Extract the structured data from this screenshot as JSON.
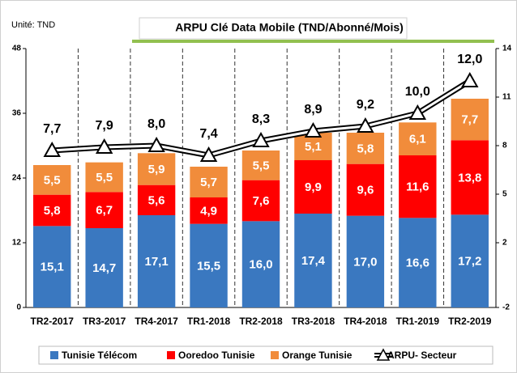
{
  "chart_data": {
    "type": "bar",
    "stacked": true,
    "unit_note": "Unité: TND",
    "title": "ARPU Clé Data Mobile (TND/Abonné/Mois)",
    "categories": [
      "TR2-2017",
      "TR3-2017",
      "TR4-2017",
      "TR1-2018",
      "TR2-2018",
      "TR3-2018",
      "TR4-2018",
      "TR1-2019",
      "TR2-2019"
    ],
    "series": [
      {
        "name": "Tunisie Télécom",
        "color": "#3a78c0",
        "values": [
          15.1,
          14.7,
          17.1,
          15.5,
          16.0,
          17.4,
          17.0,
          16.6,
          17.2
        ],
        "value_labels": [
          "15,1",
          "14,7",
          "17,1",
          "15,5",
          "16,0",
          "17,4",
          "17,0",
          "16,6",
          "17,2"
        ]
      },
      {
        "name": "Ooredoo Tunisie",
        "color": "#ff0000",
        "values": [
          5.8,
          6.7,
          5.6,
          4.9,
          7.6,
          9.9,
          9.6,
          11.6,
          13.8
        ],
        "value_labels": [
          "5,8",
          "6,7",
          "5,6",
          "4,9",
          "7,6",
          "9,9",
          "9,6",
          "11,6",
          "13,8"
        ]
      },
      {
        "name": "Orange Tunisie",
        "color": "#f18c3b",
        "values": [
          5.5,
          5.5,
          5.9,
          5.7,
          5.5,
          5.1,
          5.8,
          6.1,
          7.7
        ],
        "value_labels": [
          "5,5",
          "5,5",
          "5,9",
          "5,7",
          "5,5",
          "5,1",
          "5,8",
          "6,1",
          "7,7"
        ]
      },
      {
        "name": "ARPU- Secteur",
        "type": "line",
        "axis": "y2",
        "color": "#000000",
        "values": [
          7.7,
          7.9,
          8.0,
          7.4,
          8.3,
          8.9,
          9.2,
          10.0,
          12.0
        ],
        "value_labels": [
          "7,7",
          "7,9",
          "8,0",
          "7,4",
          "8,3",
          "8,9",
          "9,2",
          "10,0",
          "12,0"
        ]
      }
    ],
    "ylim": [
      0,
      48
    ],
    "yticks": [
      0,
      12,
      24,
      36,
      48
    ],
    "y2lim": [
      -2,
      14
    ],
    "y2ticks": [
      -2,
      2,
      5,
      8,
      11,
      14
    ],
    "legend": "bottom"
  }
}
